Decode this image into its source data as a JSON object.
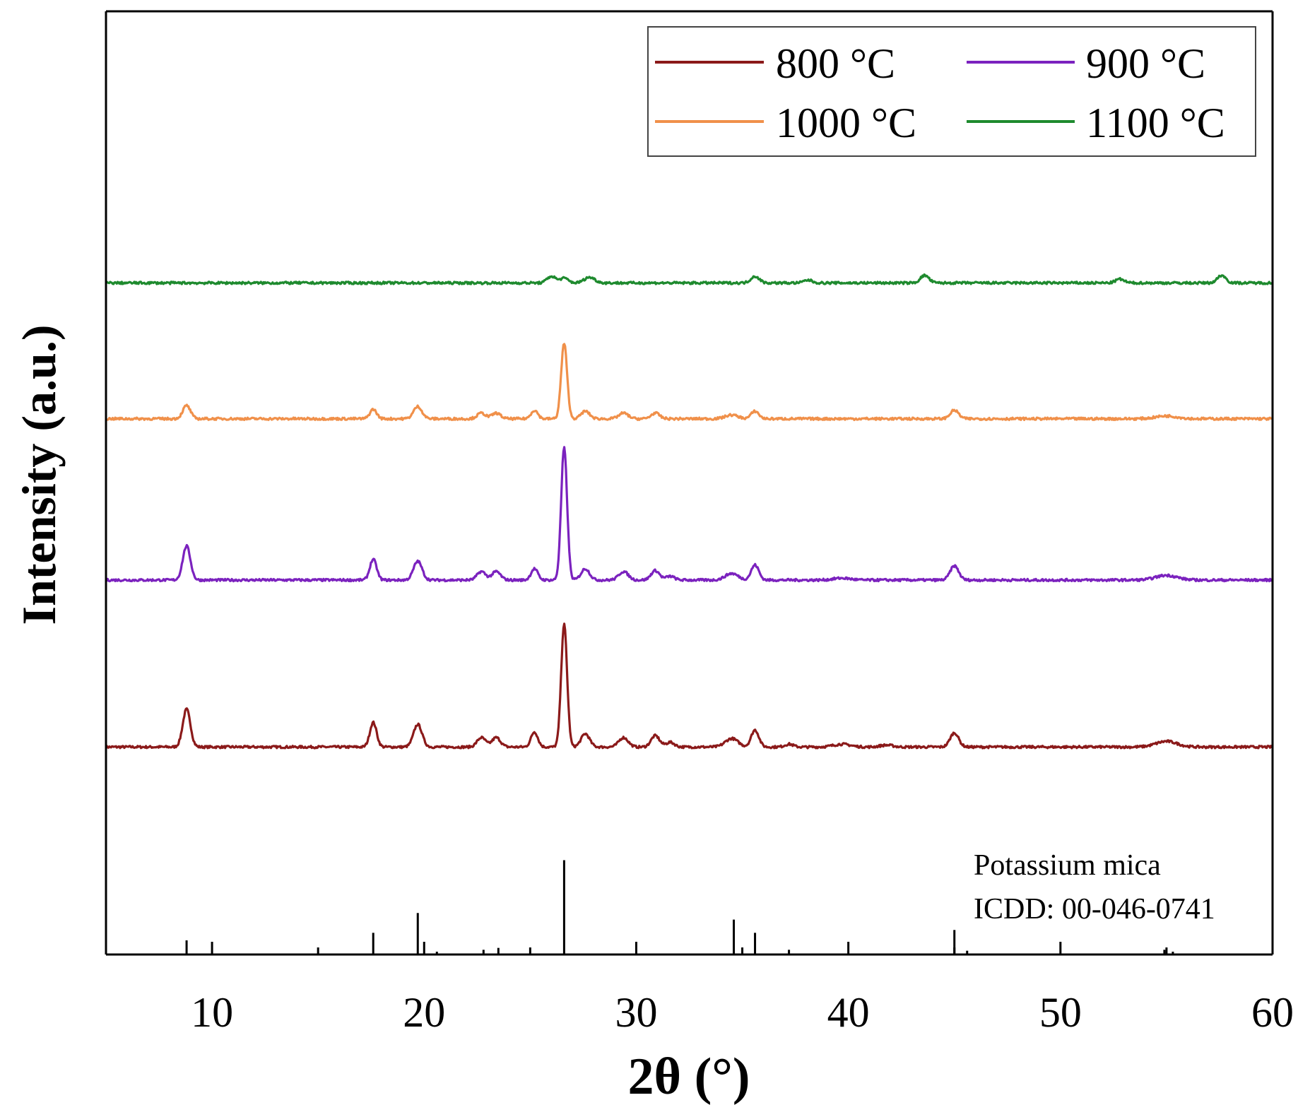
{
  "chart_data": {
    "type": "line",
    "xlabel": "2θ (°)",
    "ylabel": "Intensity (a.u.)",
    "xlim": [
      5,
      60
    ],
    "ylim": [
      0,
      100
    ],
    "xticks": [
      10,
      20,
      30,
      40,
      50,
      60
    ],
    "xtick_labels": [
      "10",
      "20",
      "30",
      "40",
      "50",
      "60"
    ],
    "legend_position": "top-right",
    "series": [
      {
        "name": "800 °C",
        "color": "#8B1A1A",
        "baseline": 22,
        "peaks": [
          {
            "x": 8.8,
            "h": 4.0,
            "w": 0.18
          },
          {
            "x": 17.6,
            "h": 2.6,
            "w": 0.16
          },
          {
            "x": 19.7,
            "h": 2.4,
            "w": 0.2
          },
          {
            "x": 22.7,
            "h": 1.0,
            "w": 0.2
          },
          {
            "x": 23.4,
            "h": 1.0,
            "w": 0.2
          },
          {
            "x": 25.2,
            "h": 1.6,
            "w": 0.16
          },
          {
            "x": 26.6,
            "h": 13.0,
            "w": 0.14
          },
          {
            "x": 27.6,
            "h": 1.4,
            "w": 0.2
          },
          {
            "x": 29.4,
            "h": 1.0,
            "w": 0.22
          },
          {
            "x": 30.9,
            "h": 1.2,
            "w": 0.2
          },
          {
            "x": 31.6,
            "h": 0.5,
            "w": 0.2
          },
          {
            "x": 34.5,
            "h": 0.9,
            "w": 0.3
          },
          {
            "x": 35.6,
            "h": 1.8,
            "w": 0.18
          },
          {
            "x": 37.2,
            "h": 0.3,
            "w": 0.2
          },
          {
            "x": 39.7,
            "h": 0.3,
            "w": 0.4
          },
          {
            "x": 41.8,
            "h": 0.2,
            "w": 0.3
          },
          {
            "x": 45.0,
            "h": 1.5,
            "w": 0.2
          },
          {
            "x": 55.0,
            "h": 0.6,
            "w": 0.5
          }
        ]
      },
      {
        "name": "900 °C",
        "color": "#7B22BE",
        "baseline": 39.7,
        "peaks": [
          {
            "x": 8.8,
            "h": 3.6,
            "w": 0.18
          },
          {
            "x": 17.6,
            "h": 2.2,
            "w": 0.16
          },
          {
            "x": 19.7,
            "h": 2.0,
            "w": 0.2
          },
          {
            "x": 22.7,
            "h": 0.9,
            "w": 0.2
          },
          {
            "x": 23.4,
            "h": 0.9,
            "w": 0.2
          },
          {
            "x": 25.2,
            "h": 1.2,
            "w": 0.16
          },
          {
            "x": 26.6,
            "h": 14.0,
            "w": 0.14
          },
          {
            "x": 27.6,
            "h": 1.2,
            "w": 0.2
          },
          {
            "x": 29.4,
            "h": 0.9,
            "w": 0.22
          },
          {
            "x": 30.9,
            "h": 1.0,
            "w": 0.2
          },
          {
            "x": 31.6,
            "h": 0.4,
            "w": 0.2
          },
          {
            "x": 34.5,
            "h": 0.7,
            "w": 0.3
          },
          {
            "x": 35.6,
            "h": 1.6,
            "w": 0.18
          },
          {
            "x": 39.7,
            "h": 0.2,
            "w": 0.4
          },
          {
            "x": 45.0,
            "h": 1.5,
            "w": 0.2
          },
          {
            "x": 55.0,
            "h": 0.5,
            "w": 0.5
          }
        ]
      },
      {
        "name": "1000 °C",
        "color": "#F0904A",
        "baseline": 56.8,
        "peaks": [
          {
            "x": 8.8,
            "h": 1.4,
            "w": 0.18
          },
          {
            "x": 17.6,
            "h": 1.0,
            "w": 0.16
          },
          {
            "x": 19.7,
            "h": 1.3,
            "w": 0.2
          },
          {
            "x": 22.7,
            "h": 0.6,
            "w": 0.2
          },
          {
            "x": 23.4,
            "h": 0.6,
            "w": 0.2
          },
          {
            "x": 25.2,
            "h": 0.9,
            "w": 0.16
          },
          {
            "x": 26.6,
            "h": 8.0,
            "w": 0.14
          },
          {
            "x": 27.6,
            "h": 0.8,
            "w": 0.2
          },
          {
            "x": 29.4,
            "h": 0.6,
            "w": 0.22
          },
          {
            "x": 30.9,
            "h": 0.6,
            "w": 0.2
          },
          {
            "x": 34.5,
            "h": 0.4,
            "w": 0.3
          },
          {
            "x": 35.6,
            "h": 0.8,
            "w": 0.18
          },
          {
            "x": 45.0,
            "h": 0.9,
            "w": 0.2
          },
          {
            "x": 55.0,
            "h": 0.3,
            "w": 0.5
          }
        ]
      },
      {
        "name": "1100 °C",
        "color": "#1E8A2E",
        "baseline": 71.2,
        "peaks": [
          {
            "x": 26.0,
            "h": 0.7,
            "w": 0.2
          },
          {
            "x": 26.6,
            "h": 0.5,
            "w": 0.2
          },
          {
            "x": 27.8,
            "h": 0.6,
            "w": 0.25
          },
          {
            "x": 35.6,
            "h": 0.7,
            "w": 0.2
          },
          {
            "x": 38.1,
            "h": 0.3,
            "w": 0.2
          },
          {
            "x": 43.6,
            "h": 0.8,
            "w": 0.2
          },
          {
            "x": 52.8,
            "h": 0.4,
            "w": 0.2
          },
          {
            "x": 57.6,
            "h": 0.8,
            "w": 0.2
          }
        ]
      }
    ],
    "reference": {
      "line1": "Potassium mica",
      "line2": "ICDD: 00-046-0741",
      "color": "#000000",
      "sticks": [
        {
          "x": 8.8,
          "h": 1.5
        },
        {
          "x": 17.6,
          "h": 2.3
        },
        {
          "x": 19.7,
          "h": 4.4
        },
        {
          "x": 20.6,
          "h": 0.3
        },
        {
          "x": 22.8,
          "h": 0.5
        },
        {
          "x": 23.5,
          "h": 0.7
        },
        {
          "x": 26.6,
          "h": 10.0
        },
        {
          "x": 34.6,
          "h": 3.7
        },
        {
          "x": 35.6,
          "h": 2.3
        },
        {
          "x": 37.2,
          "h": 0.5
        },
        {
          "x": 45.0,
          "h": 2.6
        },
        {
          "x": 45.6,
          "h": 0.4
        },
        {
          "x": 54.9,
          "h": 0.5
        },
        {
          "x": 55.3,
          "h": 0.3
        }
      ]
    }
  }
}
